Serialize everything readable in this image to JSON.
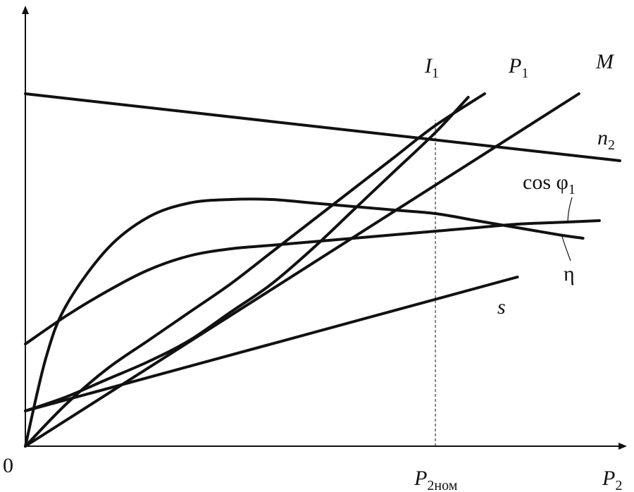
{
  "chart_data": {
    "type": "line",
    "title": "",
    "xlabel": {
      "main": "P",
      "sub": "2"
    },
    "ylabel": "",
    "origin_label": "0",
    "xlim": [
      0,
      1.45
    ],
    "ylim": [
      0,
      1.0
    ],
    "grid": false,
    "axis_color": "#111111",
    "marker": {
      "x": 1.0,
      "label_main": "P",
      "label_sub": "2ном"
    },
    "series": [
      {
        "name": "n2",
        "label_main": "n",
        "label_sub": "2",
        "italic": true,
        "points": [
          [
            0,
            1.0
          ],
          [
            1.45,
            0.81
          ]
        ]
      },
      {
        "name": "I1",
        "label_main": "I",
        "label_sub": "1",
        "italic": true,
        "points": [
          [
            0,
            0.1
          ],
          [
            0.1,
            0.14
          ],
          [
            0.2,
            0.19
          ],
          [
            0.3,
            0.24
          ],
          [
            0.4,
            0.3
          ],
          [
            0.5,
            0.38
          ],
          [
            0.6,
            0.46
          ],
          [
            0.7,
            0.56
          ],
          [
            0.8,
            0.67
          ],
          [
            0.9,
            0.78
          ],
          [
            1.0,
            0.89
          ],
          [
            1.08,
            0.99
          ]
        ]
      },
      {
        "name": "P1",
        "label_main": "P",
        "label_sub": "1",
        "italic": true,
        "points": [
          [
            0,
            0
          ],
          [
            0.1,
            0.12
          ],
          [
            0.2,
            0.22
          ],
          [
            0.3,
            0.3
          ],
          [
            0.4,
            0.38
          ],
          [
            0.5,
            0.46
          ],
          [
            0.6,
            0.55
          ],
          [
            0.7,
            0.64
          ],
          [
            0.8,
            0.73
          ],
          [
            0.9,
            0.82
          ],
          [
            1.0,
            0.91
          ],
          [
            1.12,
            1.0
          ]
        ]
      },
      {
        "name": "M",
        "label_main": "M",
        "label_sub": "",
        "italic": true,
        "points": [
          [
            0,
            0
          ],
          [
            1.35,
            1.0
          ]
        ]
      },
      {
        "name": "cos φ1",
        "label_main": "cos φ",
        "label_sub": "1",
        "italic": false,
        "points": [
          [
            0,
            0.29
          ],
          [
            0.1,
            0.37
          ],
          [
            0.2,
            0.44
          ],
          [
            0.3,
            0.5
          ],
          [
            0.4,
            0.54
          ],
          [
            0.5,
            0.56
          ],
          [
            0.6,
            0.57
          ],
          [
            0.7,
            0.58
          ],
          [
            0.8,
            0.59
          ],
          [
            0.9,
            0.6
          ],
          [
            1.0,
            0.61
          ],
          [
            1.1,
            0.62
          ],
          [
            1.2,
            0.63
          ],
          [
            1.3,
            0.635
          ],
          [
            1.4,
            0.64
          ]
        ]
      },
      {
        "name": "η",
        "label_main": "η",
        "label_sub": "",
        "italic": false,
        "points": [
          [
            0,
            0
          ],
          [
            0.05,
            0.25
          ],
          [
            0.1,
            0.4
          ],
          [
            0.2,
            0.56
          ],
          [
            0.3,
            0.65
          ],
          [
            0.4,
            0.69
          ],
          [
            0.5,
            0.7
          ],
          [
            0.6,
            0.7
          ],
          [
            0.7,
            0.69
          ],
          [
            0.8,
            0.68
          ],
          [
            0.9,
            0.67
          ],
          [
            1.0,
            0.66
          ],
          [
            1.1,
            0.64
          ],
          [
            1.2,
            0.62
          ],
          [
            1.3,
            0.6
          ],
          [
            1.36,
            0.59
          ]
        ]
      },
      {
        "name": "s",
        "label_main": "s",
        "label_sub": "",
        "italic": true,
        "points": [
          [
            0,
            0.1
          ],
          [
            1.2,
            0.48
          ]
        ]
      }
    ]
  }
}
